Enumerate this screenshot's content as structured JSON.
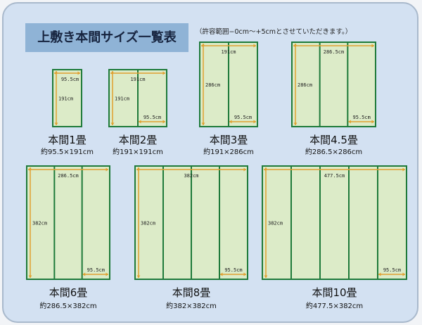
{
  "title": "上敷き本間サイズ一覧表",
  "note": "（許容範囲−0cm〜+5cmとさせていただきます。）",
  "colors": {
    "panel_bg": "#d3e1f2",
    "title_bg": "#8fb3d6",
    "mat_fill": "#dcebc8",
    "mat_border": "#1e7a3a",
    "arrow": "#e0a030"
  },
  "mats": [
    {
      "name": "本間1畳",
      "size": "約95.5×191cm",
      "panels": 1,
      "width_label": "95.5cm",
      "height_label": "191cm",
      "panel_label": ""
    },
    {
      "name": "本間2畳",
      "size": "約191×191cm",
      "panels": 2,
      "width_label": "191cm",
      "height_label": "191cm",
      "panel_label": "95.5cm"
    },
    {
      "name": "本間3畳",
      "size": "約191×286cm",
      "panels": 2,
      "width_label": "191cm",
      "height_label": "286cm",
      "panel_label": "95.5cm"
    },
    {
      "name": "本間4.5畳",
      "size": "約286.5×286cm",
      "panels": 3,
      "width_label": "286.5cm",
      "height_label": "286cm",
      "panel_label": "95.5cm"
    },
    {
      "name": "本間6畳",
      "size": "約286.5×382cm",
      "panels": 3,
      "width_label": "286.5cm",
      "height_label": "382cm",
      "panel_label": "95.5cm"
    },
    {
      "name": "本間8畳",
      "size": "約382×382cm",
      "panels": 4,
      "width_label": "382cm",
      "height_label": "382cm",
      "panel_label": "95.5cm"
    },
    {
      "name": "本間10畳",
      "size": "約477.5×382cm",
      "panels": 5,
      "width_label": "477.5cm",
      "height_label": "382cm",
      "panel_label": "95.5cm"
    }
  ]
}
